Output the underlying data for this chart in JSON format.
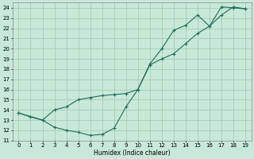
{
  "xlabel": "Humidex (Indice chaleur)",
  "bg_color": "#c8e8d8",
  "grid_color": "#a0c8b0",
  "line_color": "#1e6e5e",
  "xlim": [
    -0.5,
    19.5
  ],
  "ylim": [
    11,
    24.5
  ],
  "xticks": [
    0,
    1,
    2,
    3,
    4,
    5,
    6,
    7,
    8,
    9,
    10,
    11,
    12,
    13,
    14,
    15,
    16,
    17,
    18,
    19
  ],
  "yticks": [
    11,
    12,
    13,
    14,
    15,
    16,
    17,
    18,
    19,
    20,
    21,
    22,
    23,
    24
  ],
  "curve1_x": [
    0,
    1,
    2,
    3,
    4,
    5,
    6,
    7,
    8,
    9,
    10,
    11,
    12,
    13,
    14,
    15,
    16,
    17,
    18,
    19
  ],
  "curve1_y": [
    13.7,
    13.3,
    13.0,
    12.3,
    12.0,
    11.8,
    11.5,
    11.6,
    12.2,
    14.3,
    16.0,
    18.5,
    20.0,
    21.8,
    22.3,
    23.3,
    22.2,
    24.1,
    24.0,
    23.9
  ],
  "curve2_x": [
    0,
    2,
    3,
    4,
    5,
    6,
    7,
    8,
    9,
    10,
    11,
    12,
    13,
    14,
    15,
    16,
    17,
    18,
    19
  ],
  "curve2_y": [
    13.7,
    13.0,
    14.0,
    14.3,
    15.0,
    15.2,
    15.4,
    15.5,
    15.6,
    16.0,
    18.4,
    19.0,
    19.5,
    20.5,
    21.5,
    22.2,
    23.3,
    24.1,
    23.9
  ]
}
